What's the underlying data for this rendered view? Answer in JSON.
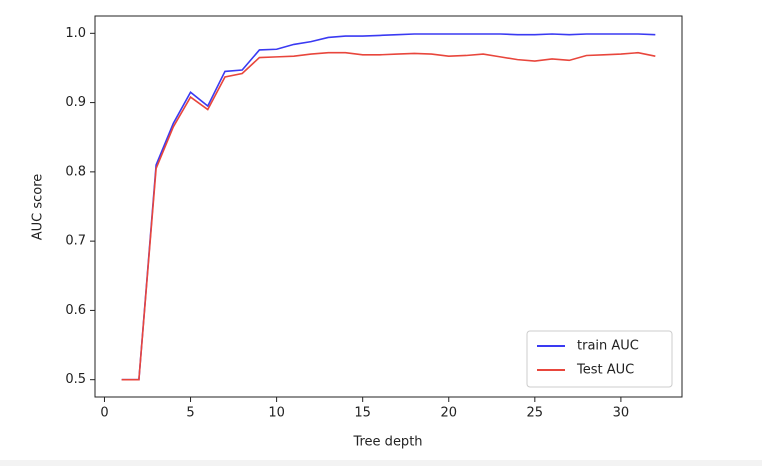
{
  "chart_data": {
    "type": "line",
    "x_label": "Tree depth",
    "y_label": "AUC score",
    "x": [
      1,
      2,
      3,
      4,
      5,
      6,
      7,
      8,
      9,
      10,
      11,
      12,
      13,
      14,
      15,
      16,
      17,
      18,
      19,
      20,
      21,
      22,
      23,
      24,
      25,
      26,
      27,
      28,
      29,
      30,
      31,
      32
    ],
    "series": [
      {
        "name": "train AUC",
        "color": "#3a3af2",
        "values": [
          0.5,
          0.5,
          0.81,
          0.87,
          0.915,
          0.895,
          0.945,
          0.947,
          0.976,
          0.977,
          0.984,
          0.988,
          0.994,
          0.996,
          0.996,
          0.997,
          0.998,
          0.999,
          0.999,
          0.999,
          0.999,
          0.999,
          0.999,
          0.998,
          0.998,
          0.999,
          0.998,
          0.999,
          0.999,
          0.999,
          0.999,
          0.998
        ]
      },
      {
        "name": "Test AUC",
        "color": "#e8463c",
        "values": [
          0.5,
          0.5,
          0.805,
          0.865,
          0.908,
          0.89,
          0.937,
          0.942,
          0.965,
          0.966,
          0.967,
          0.97,
          0.972,
          0.972,
          0.969,
          0.969,
          0.97,
          0.971,
          0.97,
          0.967,
          0.968,
          0.97,
          0.966,
          0.962,
          0.96,
          0.963,
          0.961,
          0.968,
          0.969,
          0.97,
          0.972,
          0.967
        ]
      }
    ],
    "xlim": [
      -0.55,
      33.55
    ],
    "xticks": [
      0,
      5,
      10,
      15,
      20,
      25,
      30
    ],
    "ylim": [
      0.475,
      1.025
    ],
    "yticks": [
      0.5,
      0.6,
      0.7,
      0.8,
      0.9,
      {
        "value": 1,
        "label": "1.0"
      }
    ],
    "legend": "lower right"
  }
}
